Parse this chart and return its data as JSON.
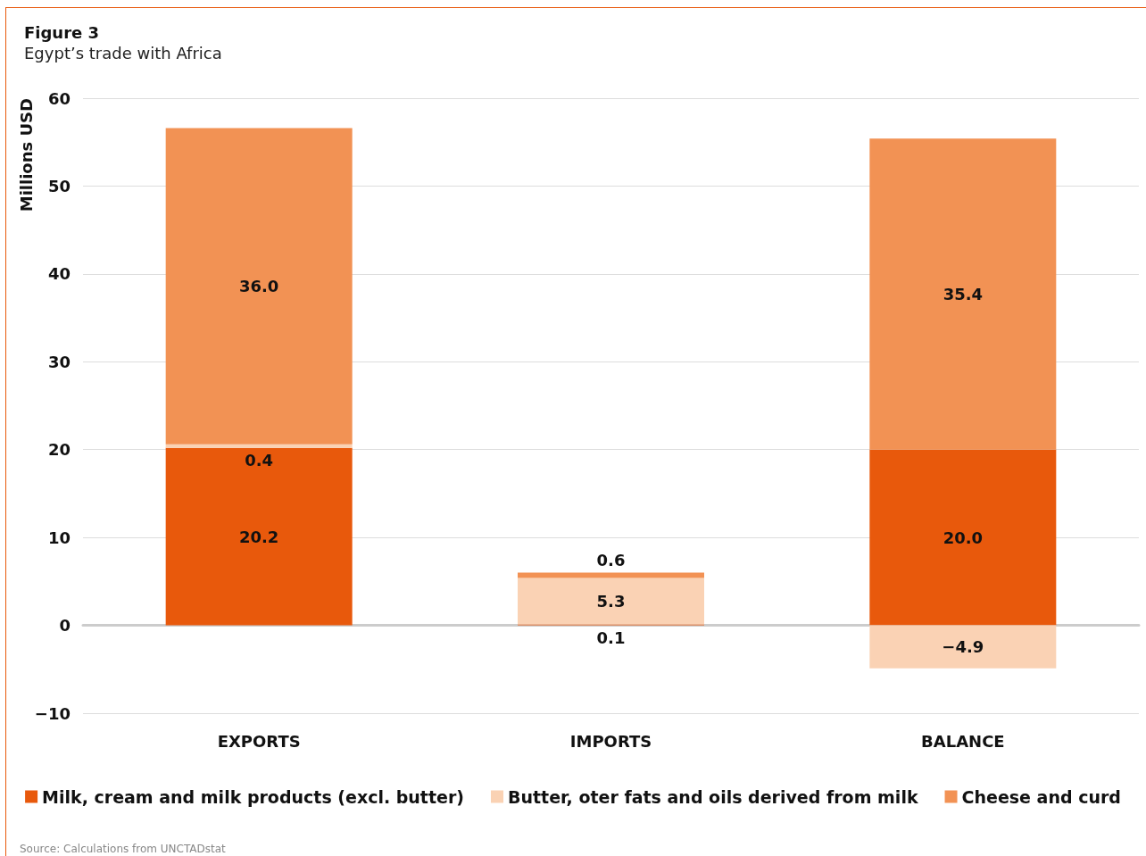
{
  "chart_data": {
    "type": "bar",
    "title": "Figure 3",
    "subtitle": "Egypt’s trade with Africa",
    "ylabel": "Millions USD",
    "categories": [
      "EXPORTS",
      "IMPORTS",
      "BALANCE"
    ],
    "series": [
      {
        "name": "Milk, cream and milk products (excl. butter)",
        "color": "#e8590c",
        "values": [
          20.2,
          0.1,
          20.0
        ],
        "value_labels": [
          "20.2",
          "0.1",
          "20.0"
        ]
      },
      {
        "name": "Butter, oter fats and oils derived from milk",
        "color": "#fad2b4",
        "values": [
          0.4,
          5.3,
          -4.9
        ],
        "value_labels": [
          "0.4",
          "5.3",
          "−4.9"
        ]
      },
      {
        "name": "Cheese and curd",
        "color": "#f29254",
        "values": [
          36.0,
          0.6,
          35.4
        ],
        "value_labels": [
          "36.0",
          "0.6",
          "35.4"
        ]
      }
    ],
    "stacked": true,
    "ylim": [
      -10,
      60
    ],
    "yticks": [
      -10,
      0,
      10,
      20,
      30,
      40,
      50,
      60
    ],
    "grid": "y",
    "legend": "bottom",
    "annotations": [
      "Source: Calculations from UNCTADstat"
    ]
  }
}
